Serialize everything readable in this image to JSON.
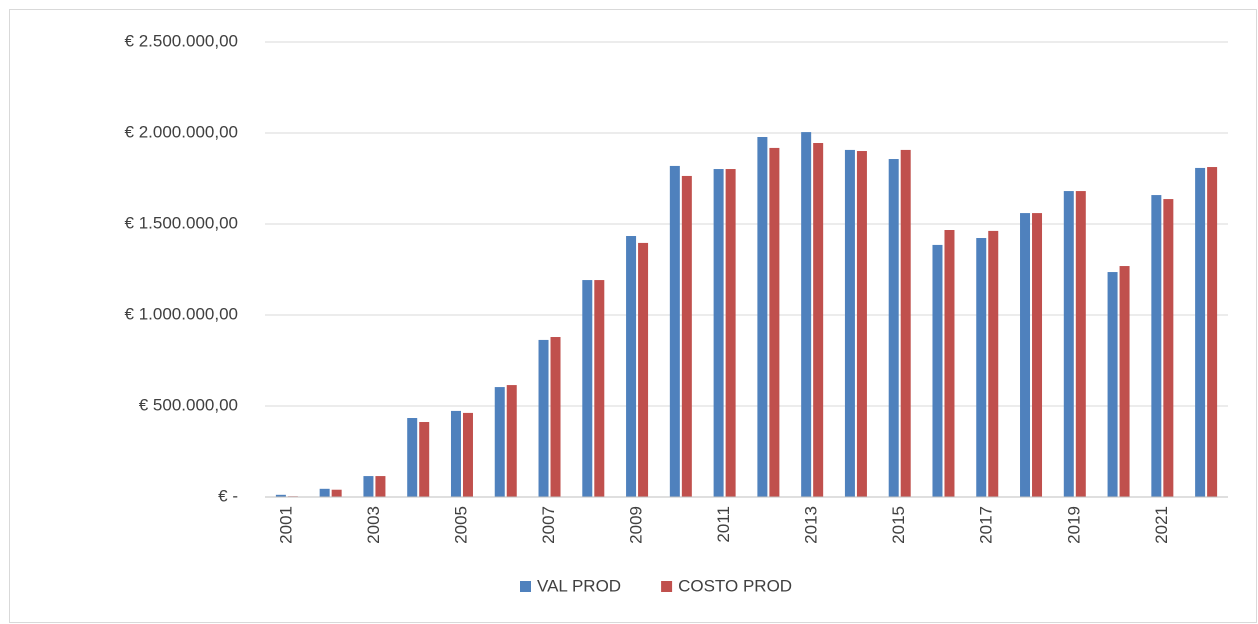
{
  "chart_data": {
    "type": "bar",
    "categories": [
      "2001",
      null,
      "2003",
      null,
      "2005",
      null,
      "2007",
      null,
      "2009",
      null,
      "2011",
      null,
      "2013",
      null,
      "2015",
      null,
      "2017",
      null,
      "2019",
      null,
      "2021",
      null
    ],
    "series": [
      {
        "name": "VAL PROD",
        "color": "#4f81bd",
        "values": [
          12000,
          45000,
          115000,
          434000,
          473000,
          604000,
          863000,
          1192000,
          1434000,
          1819000,
          1802000,
          1978000,
          2005000,
          1907000,
          1857000,
          1385000,
          1423000,
          1560000,
          1681000,
          1236000,
          1659000,
          1808000
        ]
      },
      {
        "name": "COSTO PROD",
        "color": "#c0504d",
        "values": [
          4000,
          40000,
          115000,
          412000,
          462000,
          615000,
          879000,
          1192000,
          1396000,
          1764000,
          1802000,
          1918000,
          1945000,
          1901000,
          1907000,
          1467000,
          1462000,
          1560000,
          1681000,
          1269000,
          1637000,
          1813000
        ]
      }
    ],
    "ylim": [
      0,
      2500000
    ],
    "yticks": [
      {
        "value": 0,
        "label": "€ -"
      },
      {
        "value": 500000,
        "label": "€ 500.000,00"
      },
      {
        "value": 1000000,
        "label": "€ 1.000.000,00"
      },
      {
        "value": 1500000,
        "label": "€ 1.500.000,00"
      },
      {
        "value": 2000000,
        "label": "€ 2.000.000,00"
      },
      {
        "value": 2500000,
        "label": "€ 2.500.000,00"
      }
    ],
    "grid": true,
    "legend": "bottom"
  }
}
